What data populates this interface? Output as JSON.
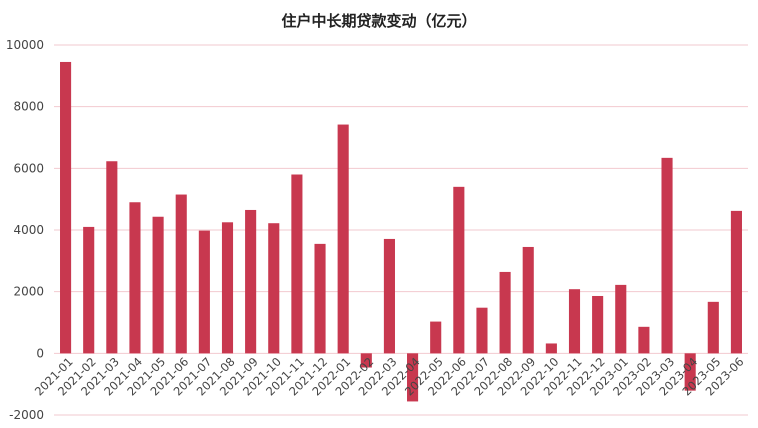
{
  "colors": {
    "bar": "#c8384f",
    "grid": "#f2c9cf",
    "text": "#444444"
  },
  "chart_data": {
    "type": "bar",
    "title": "住户中长期贷款变动（亿元）",
    "xlabel": "",
    "ylabel": "",
    "ylim": [
      -2000,
      10000
    ],
    "yticks": [
      -2000,
      0,
      2000,
      4000,
      6000,
      8000,
      10000
    ],
    "grid": true,
    "categories": [
      "2021-01",
      "2021-02",
      "2021-03",
      "2021-04",
      "2021-05",
      "2021-06",
      "2021-07",
      "2021-08",
      "2021-09",
      "2021-10",
      "2021-11",
      "2021-12",
      "2022-01",
      "2022-02",
      "2022-03",
      "2022-04",
      "2022-05",
      "2022-06",
      "2022-07",
      "2022-08",
      "2022-09",
      "2022-10",
      "2022-11",
      "2022-12",
      "2023-01",
      "2023-02",
      "2023-03",
      "2023-04",
      "2023-05",
      "2023-06"
    ],
    "values": [
      9450,
      4100,
      6230,
      4900,
      4430,
      5150,
      3980,
      4250,
      4650,
      4220,
      5800,
      3550,
      7420,
      -460,
      3710,
      -1560,
      1030,
      5400,
      1480,
      2640,
      3450,
      320,
      2080,
      1860,
      2220,
      860,
      6340,
      -1210,
      1670,
      4620
    ]
  }
}
